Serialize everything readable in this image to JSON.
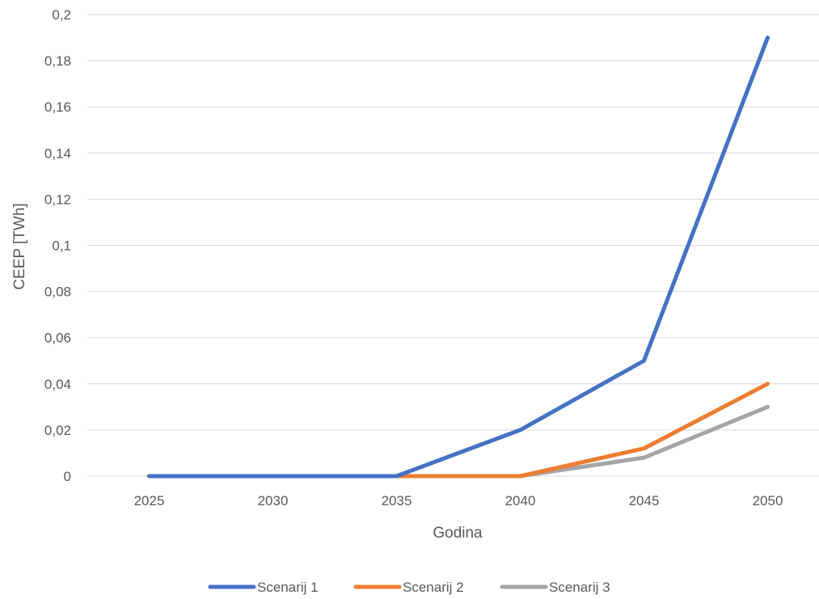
{
  "chart_data": {
    "type": "line",
    "title": "",
    "xlabel": "Godina",
    "ylabel": "CEEP [TWh]",
    "categories": [
      "2025",
      "2030",
      "2035",
      "2040",
      "2045",
      "2050"
    ],
    "y_ticks": [
      "0",
      "0,02",
      "0,04",
      "0,06",
      "0,08",
      "0,1",
      "0,12",
      "0,14",
      "0,16",
      "0,18",
      "0,2"
    ],
    "ylim": [
      0,
      0.2
    ],
    "grid": true,
    "legend_position": "bottom",
    "series": [
      {
        "name": "Scenarij 1",
        "color": "#4472C4",
        "values": [
          0,
          0,
          0,
          0.02,
          0.05,
          0.19
        ]
      },
      {
        "name": "Scenarij 2",
        "color": "#ED7D31",
        "values": [
          0,
          0,
          0,
          0,
          0.012,
          0.04
        ]
      },
      {
        "name": "Scenarij 3",
        "color": "#A5A5A5",
        "values": [
          0,
          0,
          0,
          0,
          0.008,
          0.03
        ]
      }
    ]
  }
}
